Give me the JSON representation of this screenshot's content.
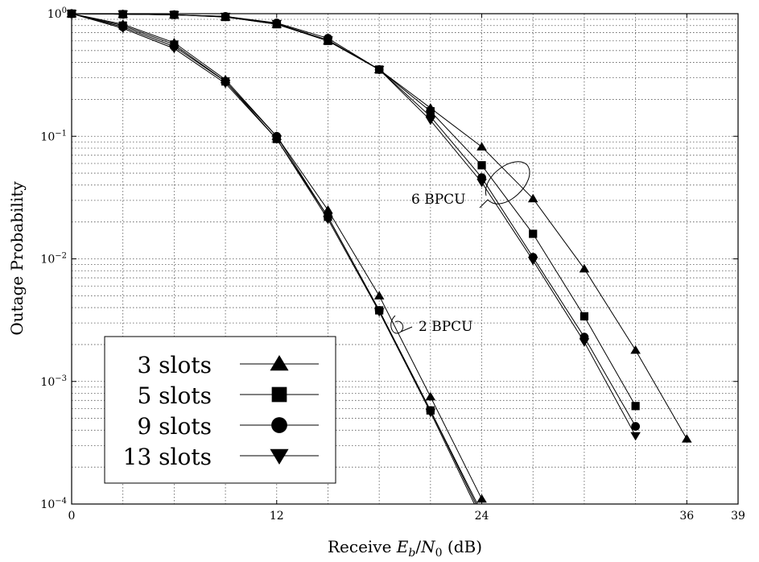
{
  "chart_data": {
    "type": "line",
    "title": "",
    "xlabel": "Receive E_b/N_0 (dB)",
    "xlabel_parts": {
      "prefix": "Receive ",
      "E": "E",
      "b": "b",
      "slash": "/",
      "N": "N",
      "zero": "0",
      "suffix": " (dB)"
    },
    "ylabel": "Outage Probability",
    "xscale": "linear",
    "yscale": "log",
    "xlim": [
      0,
      39
    ],
    "ylim": [
      0.0001,
      1
    ],
    "grid": true,
    "x_ticks": [
      {
        "value": 0,
        "label": "0"
      },
      {
        "value": 12,
        "label": "12"
      },
      {
        "value": 24,
        "label": "24"
      },
      {
        "value": 36,
        "label": "36"
      },
      {
        "value": 39,
        "label": "39"
      }
    ],
    "y_ticks": [
      {
        "value": 1,
        "base": "10",
        "exp": "0"
      },
      {
        "value": 0.1,
        "base": "10",
        "exp": "−1"
      },
      {
        "value": 0.01,
        "base": "10",
        "exp": "−2"
      },
      {
        "value": 0.001,
        "base": "10",
        "exp": "−3"
      },
      {
        "value": 0.0001,
        "base": "10",
        "exp": "−4"
      }
    ],
    "legend_position": "bottom-left",
    "legend": [
      {
        "label": "3 slots",
        "marker": "triangle-up"
      },
      {
        "label": "5 slots",
        "marker": "square"
      },
      {
        "label": "9 slots",
        "marker": "circle"
      },
      {
        "label": "13 slots",
        "marker": "triangle-down"
      }
    ],
    "annotations": [
      {
        "text": "6 BPCU",
        "group": "6 BPCU"
      },
      {
        "text": "2 BPCU",
        "group": "2 BPCU"
      }
    ],
    "series": [
      {
        "legend": "3 slots",
        "group": "2 BPCU",
        "marker": "triangle-up",
        "x": [
          0,
          3,
          6,
          9,
          12,
          15,
          18,
          21,
          24
        ],
        "y": [
          1,
          0.82,
          0.58,
          0.29,
          0.1,
          0.025,
          0.005,
          0.00075,
          0.00011
        ]
      },
      {
        "legend": "5 slots",
        "group": "2 BPCU",
        "marker": "square",
        "x": [
          0,
          3,
          6,
          9,
          12,
          15,
          18,
          21,
          24
        ],
        "y": [
          1,
          0.8,
          0.56,
          0.28,
          0.095,
          0.022,
          0.0038,
          0.00058,
          8.5e-05
        ]
      },
      {
        "legend": "9 slots",
        "group": "2 BPCU",
        "marker": "circle",
        "x": [
          0,
          3,
          6,
          9,
          12,
          15,
          18,
          21,
          24
        ],
        "y": [
          1,
          0.78,
          0.54,
          0.28,
          0.1,
          0.022,
          0.0038,
          0.00058,
          8e-05
        ]
      },
      {
        "legend": "13 slots",
        "group": "2 BPCU",
        "marker": "triangle-down",
        "x": [
          0,
          3,
          6,
          9,
          12,
          15,
          18,
          21,
          24
        ],
        "y": [
          1,
          0.76,
          0.52,
          0.27,
          0.095,
          0.021,
          0.0037,
          0.00056,
          7.5e-05
        ]
      },
      {
        "legend": "3 slots",
        "group": "6 BPCU",
        "marker": "triangle-up",
        "x": [
          0,
          3,
          6,
          9,
          12,
          15,
          18,
          21,
          24,
          27,
          30,
          33,
          36
        ],
        "y": [
          1,
          0.99,
          0.98,
          0.94,
          0.82,
          0.6,
          0.35,
          0.17,
          0.082,
          0.031,
          0.0083,
          0.0018,
          0.00034
        ]
      },
      {
        "legend": "5 slots",
        "group": "6 BPCU",
        "marker": "square",
        "x": [
          0,
          3,
          6,
          9,
          12,
          15,
          18,
          21,
          24,
          27,
          30,
          33
        ],
        "y": [
          1,
          0.99,
          0.98,
          0.94,
          0.82,
          0.6,
          0.35,
          0.16,
          0.058,
          0.016,
          0.0034,
          0.00063
        ]
      },
      {
        "legend": "9 slots",
        "group": "6 BPCU",
        "marker": "circle",
        "x": [
          0,
          3,
          6,
          9,
          12,
          15,
          18,
          21,
          24,
          27,
          30,
          33
        ],
        "y": [
          1,
          0.99,
          0.98,
          0.95,
          0.84,
          0.63,
          0.35,
          0.145,
          0.046,
          0.0103,
          0.0023,
          0.00043
        ]
      },
      {
        "legend": "13 slots",
        "group": "6 BPCU",
        "marker": "triangle-down",
        "x": [
          0,
          3,
          6,
          9,
          12,
          15,
          18,
          21,
          24,
          27,
          30,
          33
        ],
        "y": [
          1,
          0.99,
          0.98,
          0.95,
          0.83,
          0.61,
          0.35,
          0.135,
          0.042,
          0.0097,
          0.0021,
          0.00036
        ]
      }
    ]
  }
}
